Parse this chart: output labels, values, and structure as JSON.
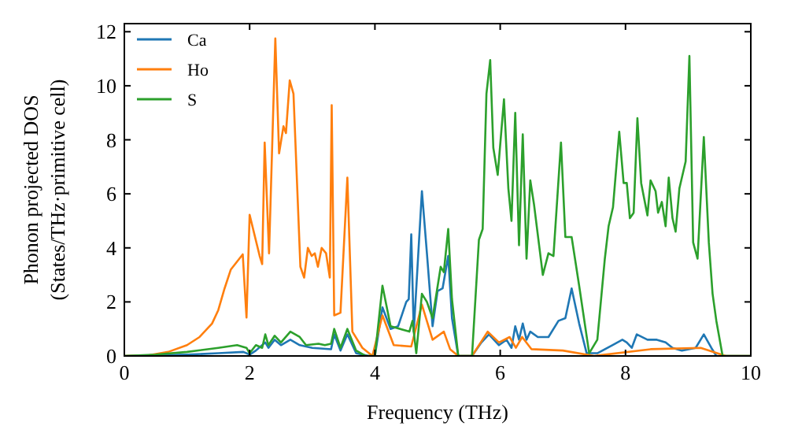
{
  "chart_data": {
    "type": "line",
    "xlabel": "Frequency (THz)",
    "ylabel": "Phonon projected DOS\n(States/THz·primitive cell)",
    "xlim": [
      0,
      10
    ],
    "ylim": [
      0,
      12.3
    ],
    "xticks": [
      0,
      2,
      4,
      6,
      8,
      10
    ],
    "yticks": [
      0,
      2,
      4,
      6,
      8,
      10,
      12
    ],
    "grid": false,
    "legend": "top left",
    "marker": "none",
    "line_style": "solid",
    "series": [
      {
        "name": "Ca",
        "color": "#1f77b4",
        "x": [
          0,
          1.0,
          1.5,
          1.9,
          2.0,
          2.1,
          2.25,
          2.3,
          2.4,
          2.5,
          2.65,
          2.8,
          3.0,
          3.3,
          3.35,
          3.45,
          3.56,
          3.7,
          3.9,
          4.0,
          4.12,
          4.25,
          4.37,
          4.5,
          4.54,
          4.58,
          4.62,
          4.75,
          4.83,
          4.92,
          5.0,
          5.08,
          5.17,
          5.23,
          5.33,
          5.55,
          5.7,
          5.82,
          5.98,
          6.1,
          6.18,
          6.24,
          6.3,
          6.36,
          6.42,
          6.48,
          6.6,
          6.77,
          6.93,
          7.04,
          7.14,
          7.26,
          7.38,
          7.55,
          7.79,
          7.95,
          8.02,
          8.1,
          8.18,
          8.35,
          8.5,
          8.64,
          8.75,
          8.9,
          9.12,
          9.25,
          9.37,
          9.45,
          10
        ],
        "values": [
          0,
          0.05,
          0.1,
          0.15,
          0.05,
          0.2,
          0.5,
          0.3,
          0.6,
          0.4,
          0.6,
          0.4,
          0.3,
          0.25,
          0.8,
          0.2,
          0.8,
          0.1,
          0,
          0,
          1.8,
          1.0,
          1.1,
          2.0,
          2.1,
          4.5,
          0.9,
          6.1,
          3.8,
          1.1,
          2.4,
          2.5,
          3.7,
          1.4,
          0,
          0,
          0.5,
          0.8,
          0.4,
          0.6,
          0.3,
          1.1,
          0.6,
          1.2,
          0.6,
          0.9,
          0.7,
          0.7,
          1.3,
          1.4,
          2.5,
          1.2,
          0.1,
          0.1,
          0.4,
          0.6,
          0.5,
          0.3,
          0.8,
          0.6,
          0.6,
          0.5,
          0.3,
          0.2,
          0.3,
          0.8,
          0.3,
          0,
          0
        ]
      },
      {
        "name": "Ho",
        "color": "#ff7f0e",
        "x": [
          0,
          0.4,
          0.7,
          1.0,
          1.2,
          1.4,
          1.5,
          1.6,
          1.7,
          1.89,
          1.95,
          2.0,
          2.16,
          2.2,
          2.24,
          2.31,
          2.41,
          2.47,
          2.54,
          2.58,
          2.64,
          2.7,
          2.81,
          2.87,
          2.93,
          2.99,
          3.04,
          3.09,
          3.15,
          3.22,
          3.28,
          3.31,
          3.35,
          3.45,
          3.56,
          3.64,
          3.8,
          3.96,
          4.12,
          4.3,
          4.58,
          4.75,
          4.92,
          5.1,
          5.2,
          5.33,
          5.55,
          5.8,
          5.98,
          6.15,
          6.25,
          6.35,
          6.5,
          7.0,
          7.5,
          8.4,
          9.2,
          9.6,
          10
        ],
        "values": [
          0,
          0.03,
          0.15,
          0.4,
          0.7,
          1.2,
          1.7,
          2.5,
          3.2,
          3.76,
          1.42,
          5.22,
          3.7,
          3.4,
          7.9,
          3.8,
          11.75,
          7.5,
          8.5,
          8.25,
          10.2,
          9.7,
          3.3,
          2.9,
          4.0,
          3.7,
          3.8,
          3.3,
          4.0,
          3.8,
          2.9,
          9.28,
          1.5,
          1.6,
          6.6,
          0.9,
          0.3,
          0,
          1.5,
          0.4,
          0.35,
          1.9,
          0.6,
          0.9,
          0.25,
          0,
          0,
          0.9,
          0.5,
          0.7,
          0.3,
          0.7,
          0.25,
          0.2,
          0,
          0.25,
          0.3,
          0,
          0
        ]
      },
      {
        "name": "S",
        "color": "#2ca02c",
        "x": [
          0,
          0.5,
          1.0,
          1.5,
          1.8,
          1.95,
          2.0,
          2.1,
          2.2,
          2.25,
          2.3,
          2.4,
          2.5,
          2.65,
          2.8,
          2.9,
          3.1,
          3.2,
          3.3,
          3.35,
          3.45,
          3.56,
          3.7,
          3.85,
          4.0,
          4.12,
          4.25,
          4.55,
          4.6,
          4.66,
          4.75,
          4.83,
          4.92,
          5.05,
          5.1,
          5.17,
          5.23,
          5.33,
          5.55,
          5.66,
          5.72,
          5.78,
          5.84,
          5.89,
          5.96,
          6.06,
          6.13,
          6.18,
          6.24,
          6.3,
          6.36,
          6.42,
          6.48,
          6.54,
          6.68,
          6.77,
          6.85,
          6.97,
          7.04,
          7.14,
          7.26,
          7.42,
          7.55,
          7.67,
          7.73,
          7.8,
          7.9,
          7.97,
          8.02,
          8.07,
          8.13,
          8.19,
          8.25,
          8.35,
          8.4,
          8.48,
          8.52,
          8.58,
          8.64,
          8.69,
          8.75,
          8.8,
          8.86,
          8.96,
          9.02,
          9.08,
          9.15,
          9.25,
          9.33,
          9.39,
          9.45,
          9.55,
          10
        ],
        "values": [
          0,
          0.05,
          0.15,
          0.3,
          0.4,
          0.3,
          0.1,
          0.4,
          0.3,
          0.8,
          0.4,
          0.75,
          0.5,
          0.9,
          0.7,
          0.4,
          0.45,
          0.4,
          0.45,
          1.0,
          0.3,
          1.0,
          0.2,
          0,
          0,
          2.6,
          1.1,
          0.9,
          1.3,
          0.1,
          2.3,
          2.0,
          1.4,
          3.3,
          3.1,
          4.7,
          2.1,
          0,
          0,
          4.3,
          4.7,
          9.7,
          10.95,
          7.7,
          6.7,
          9.5,
          6.2,
          5.0,
          9.0,
          4.1,
          8.2,
          3.6,
          6.5,
          5.6,
          3.0,
          3.8,
          3.7,
          7.9,
          4.4,
          4.4,
          2.6,
          0.1,
          0.6,
          3.6,
          4.8,
          5.5,
          8.3,
          6.4,
          6.4,
          5.1,
          5.3,
          8.8,
          6.4,
          5.2,
          6.5,
          6.1,
          5.3,
          5.7,
          4.8,
          6.6,
          5.1,
          4.6,
          6.2,
          7.2,
          11.1,
          4.2,
          3.6,
          8.1,
          4.2,
          2.3,
          1.3,
          0,
          0
        ]
      }
    ]
  }
}
